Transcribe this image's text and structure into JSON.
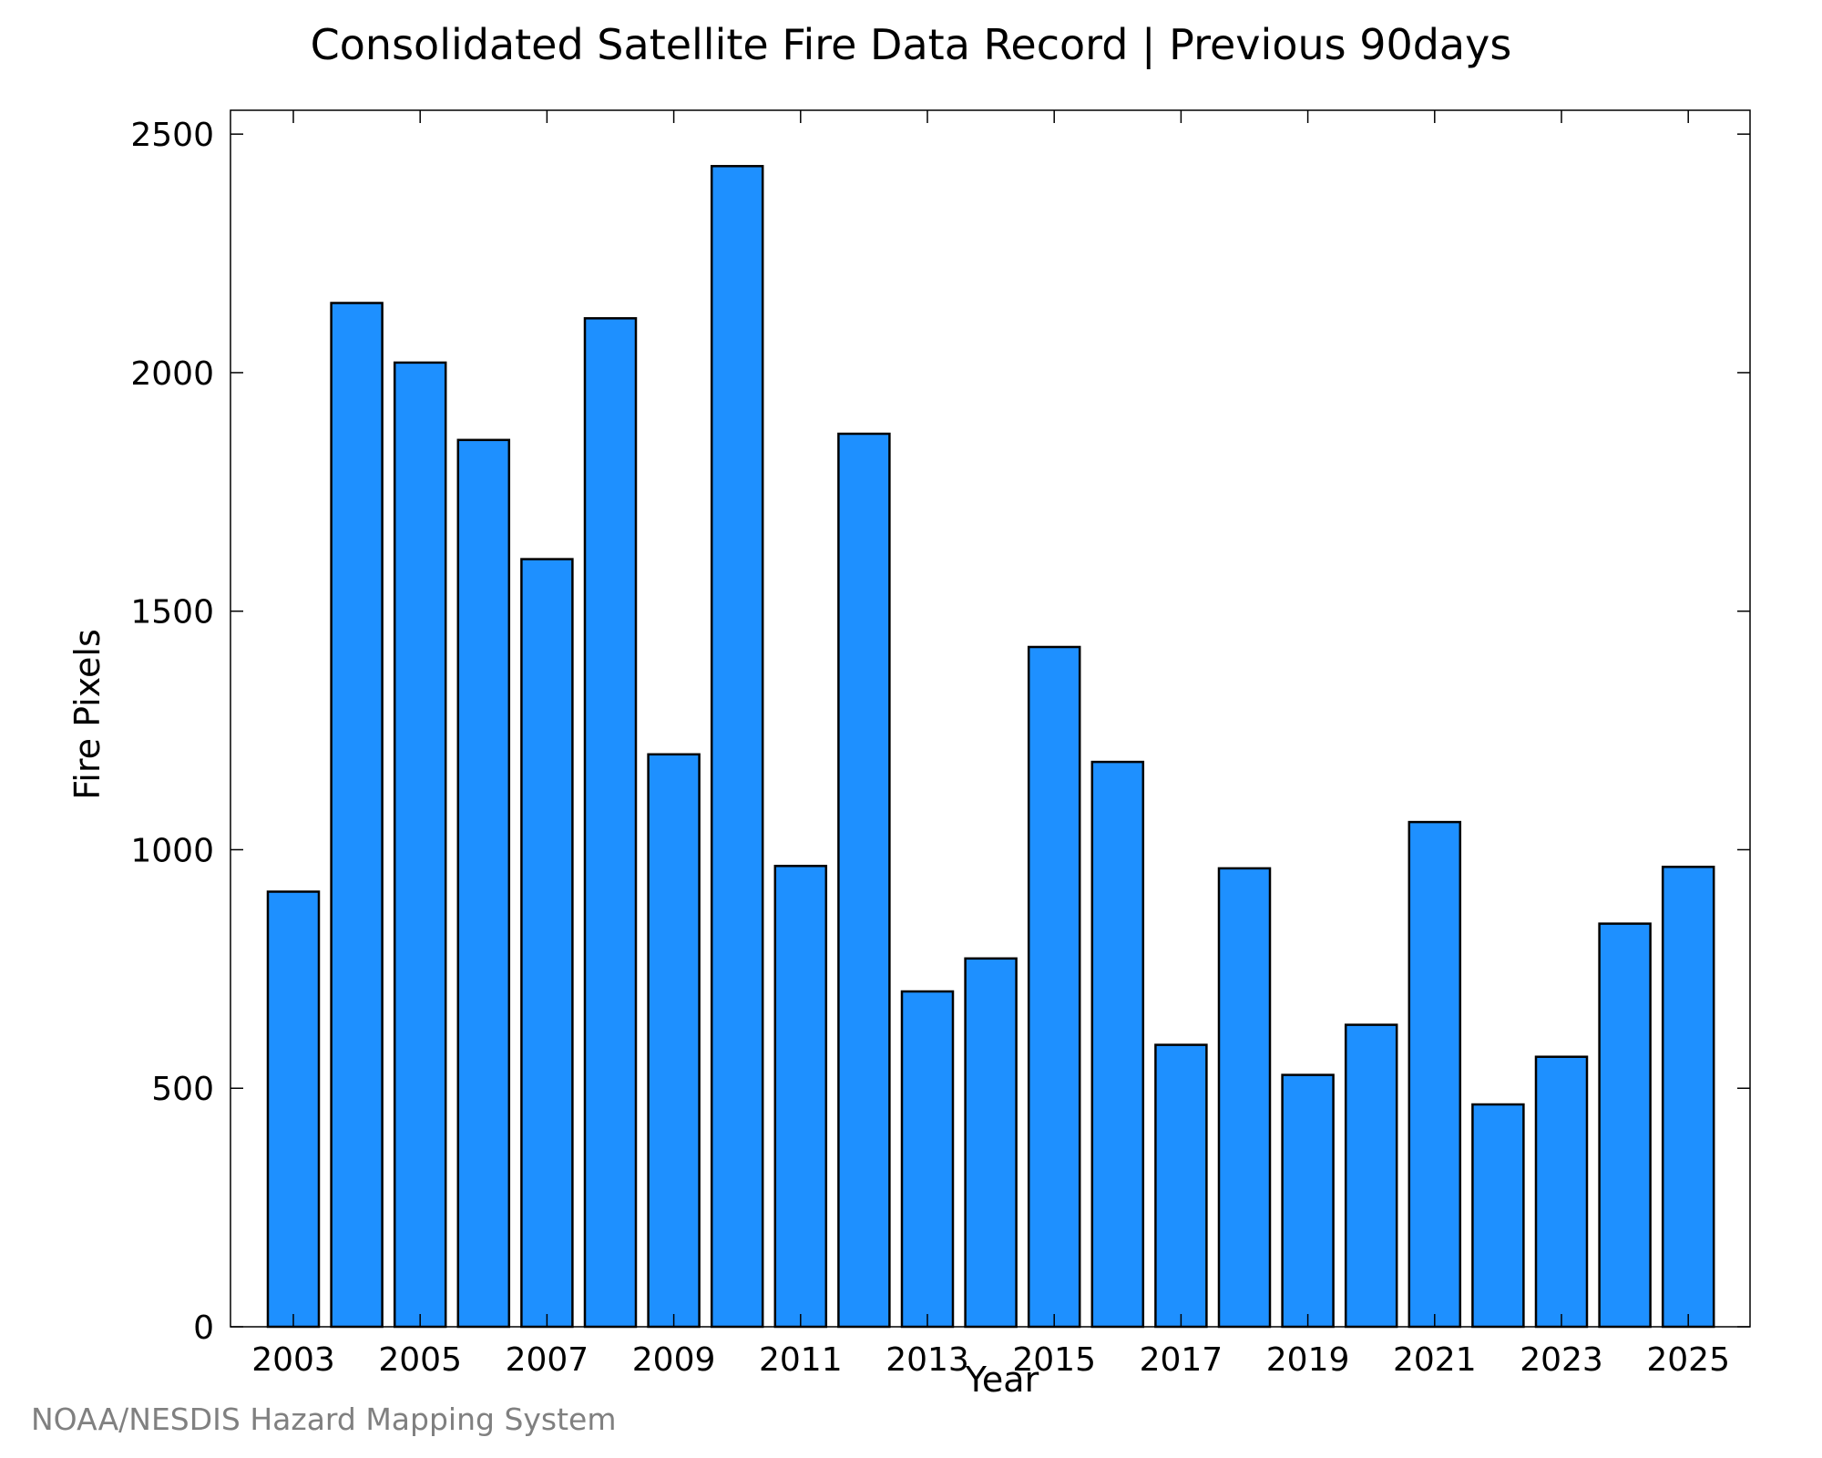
{
  "chart_data": {
    "type": "bar",
    "title": "Consolidated Satellite Fire Data Record | Previous 90days",
    "xlabel": "Year",
    "ylabel": "Fire Pixels",
    "categories": [
      "2003",
      "2004",
      "2005",
      "2006",
      "2007",
      "2008",
      "2009",
      "2010",
      "2011",
      "2012",
      "2013",
      "2014",
      "2015",
      "2016",
      "2017",
      "2018",
      "2019",
      "2020",
      "2021",
      "2022",
      "2023",
      "2024",
      "2025"
    ],
    "values": [
      912,
      2146,
      2021,
      1859,
      1609,
      2114,
      1200,
      2433,
      966,
      1872,
      703,
      772,
      1425,
      1184,
      591,
      961,
      528,
      633,
      1058,
      466,
      566,
      845,
      964
    ],
    "x_tick_labels": [
      "2003",
      "2005",
      "2007",
      "2009",
      "2011",
      "2013",
      "2015",
      "2017",
      "2019",
      "2021",
      "2023",
      "2025"
    ],
    "y_tick_labels": [
      "0",
      "500",
      "1000",
      "1500",
      "2000",
      "2500"
    ],
    "y_ticks": [
      0,
      500,
      1000,
      1500,
      2000,
      2500
    ],
    "ylim": [
      0,
      2550
    ],
    "grid": false,
    "legend": "none",
    "bar_color": "#1e90ff",
    "bar_edge_color": "#000000"
  },
  "footer": {
    "credit": "NOAA/NESDIS Hazard Mapping System"
  }
}
